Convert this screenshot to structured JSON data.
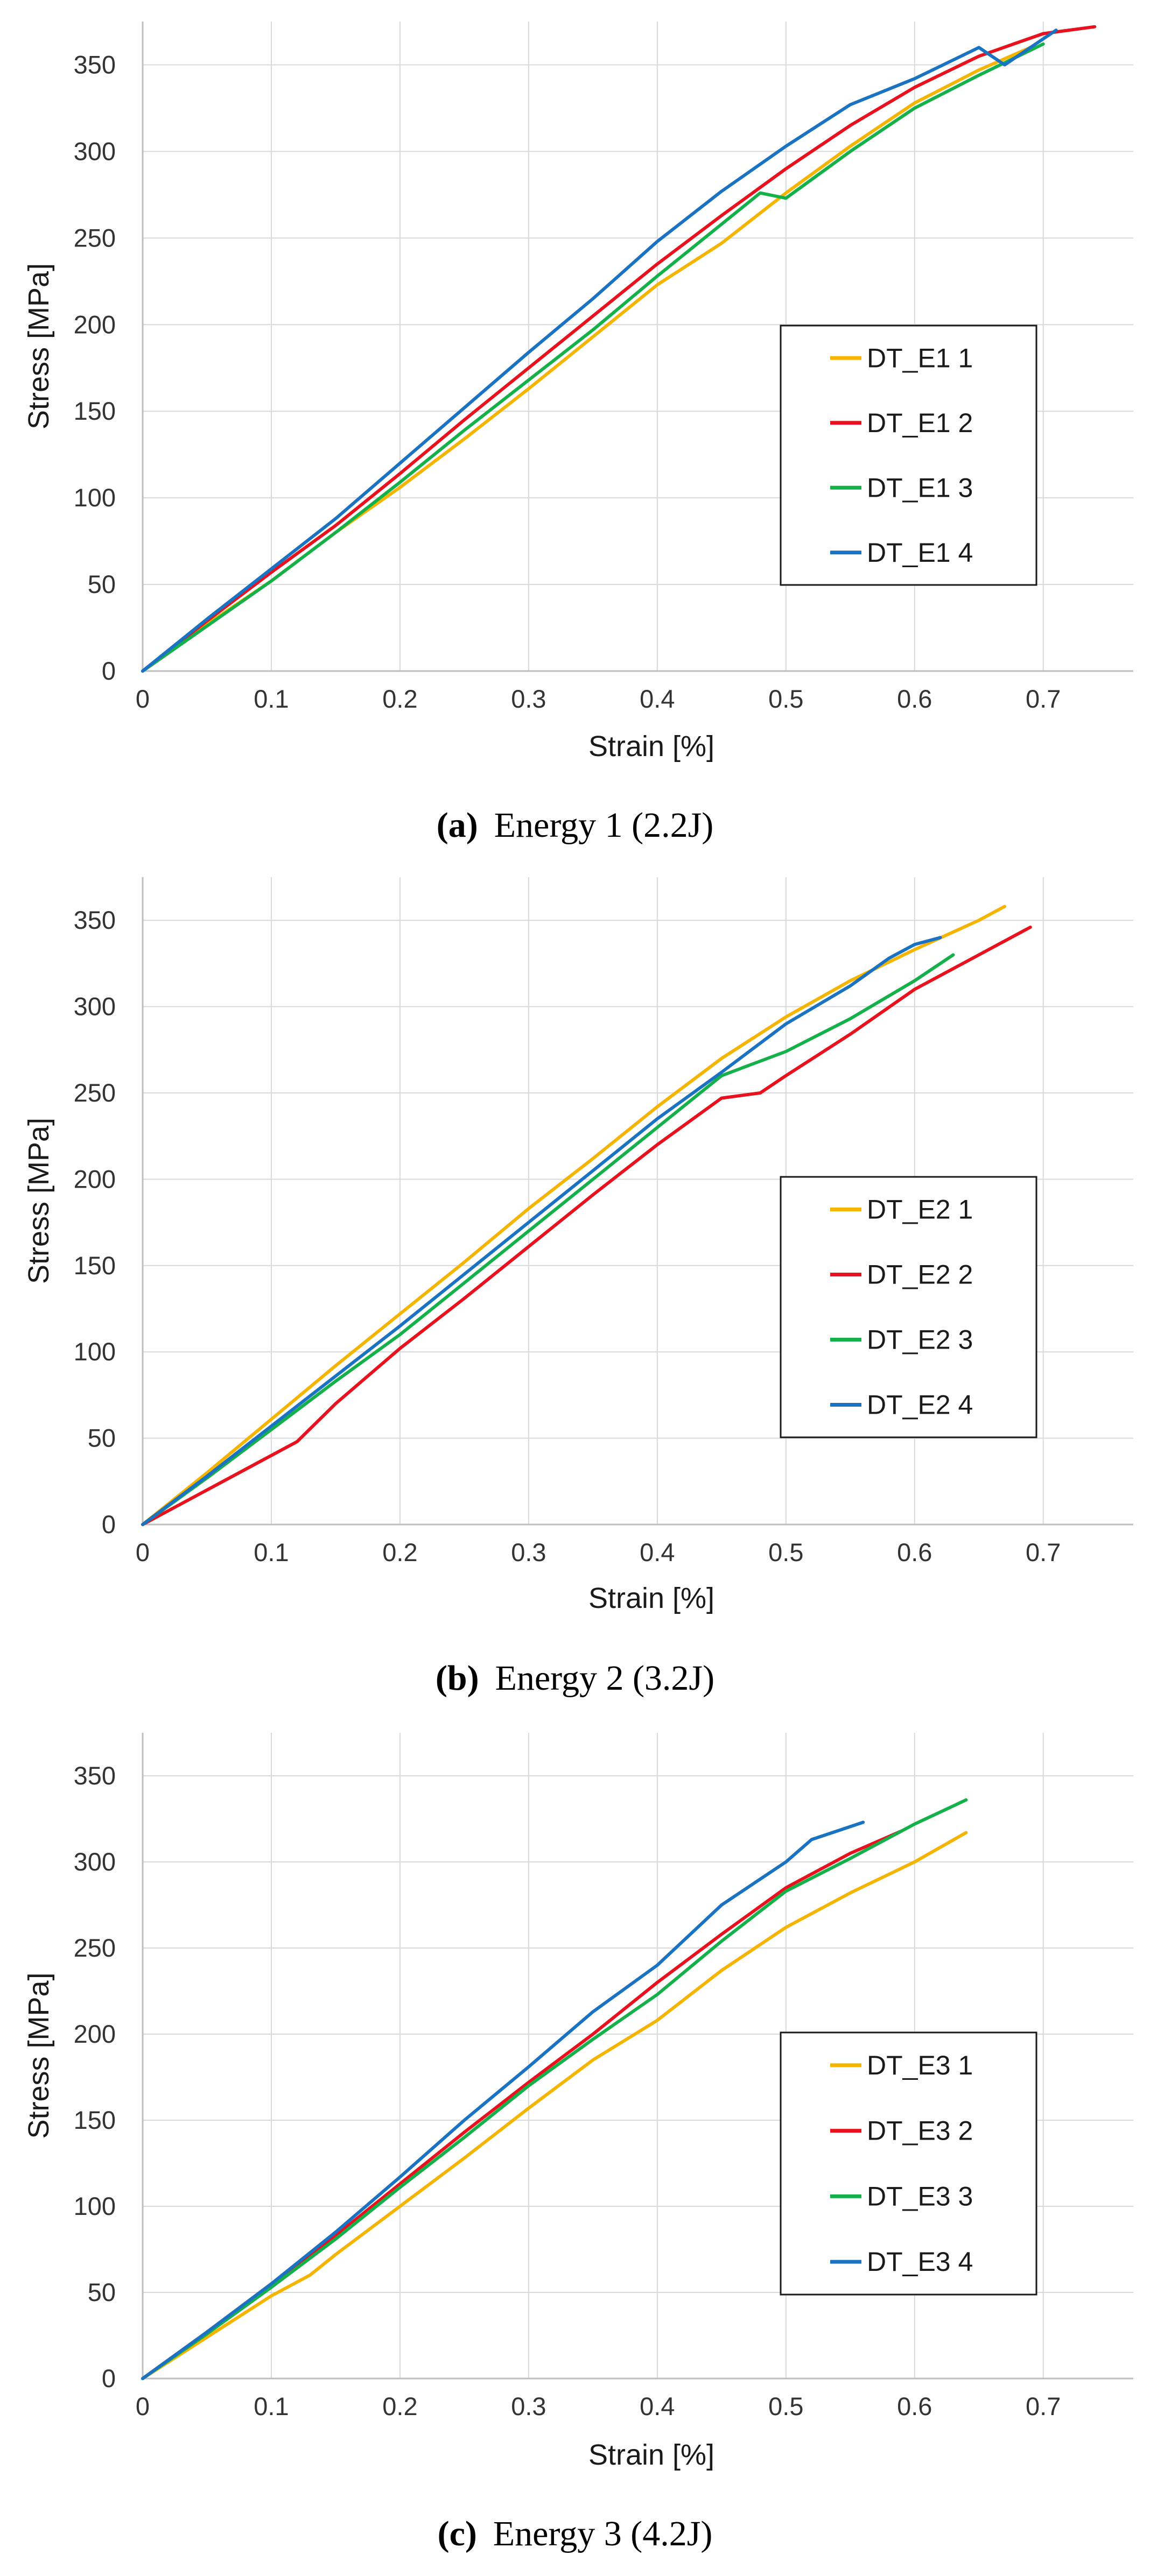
{
  "colors": {
    "yellow": "#f4b400",
    "red": "#e8111d",
    "green": "#14b04a",
    "blue": "#1a72c2",
    "grid": "#d9d9d9"
  },
  "chart_data": [
    {
      "type": "line",
      "caption_tag": "(a)",
      "caption_text": "Energy 1 (2.2J)",
      "xlabel": "Strain [%]",
      "ylabel": "Stress [MPa]",
      "xlim": [
        0,
        0.77
      ],
      "ylim": [
        0,
        375
      ],
      "xticks": [
        "0",
        "0.1",
        "0.2",
        "0.3",
        "0.4",
        "0.5",
        "0.6",
        "0.7"
      ],
      "yticks": [
        "0",
        "50",
        "100",
        "150",
        "200",
        "250",
        "300",
        "350"
      ],
      "grid": true,
      "legend_position": "center-right",
      "series": [
        {
          "name": "DT_E1 1",
          "color_key": "yellow",
          "x": [
            0,
            0.05,
            0.1,
            0.15,
            0.2,
            0.25,
            0.3,
            0.35,
            0.4,
            0.45,
            0.5,
            0.55,
            0.6,
            0.65,
            0.69
          ],
          "y": [
            0,
            27,
            52,
            80,
            106,
            134,
            163,
            193,
            223,
            247,
            276,
            303,
            328,
            347,
            360
          ]
        },
        {
          "name": "DT_E1 2",
          "color_key": "red",
          "x": [
            0,
            0.05,
            0.1,
            0.15,
            0.2,
            0.25,
            0.3,
            0.35,
            0.4,
            0.45,
            0.5,
            0.55,
            0.6,
            0.65,
            0.7,
            0.74
          ],
          "y": [
            0,
            29,
            57,
            84,
            114,
            145,
            175,
            205,
            235,
            263,
            290,
            315,
            337,
            355,
            368,
            372
          ]
        },
        {
          "name": "DT_E1 3",
          "color_key": "green",
          "x": [
            0,
            0.05,
            0.1,
            0.15,
            0.2,
            0.25,
            0.3,
            0.35,
            0.4,
            0.45,
            0.48,
            0.5,
            0.55,
            0.6,
            0.65,
            0.7
          ],
          "y": [
            0,
            26,
            52,
            80,
            109,
            139,
            168,
            197,
            228,
            258,
            276,
            273,
            300,
            325,
            344,
            362
          ]
        },
        {
          "name": "DT_E1 4",
          "color_key": "blue",
          "x": [
            0,
            0.05,
            0.1,
            0.15,
            0.2,
            0.25,
            0.3,
            0.35,
            0.4,
            0.45,
            0.5,
            0.55,
            0.6,
            0.65,
            0.67,
            0.71
          ],
          "y": [
            0,
            30,
            59,
            88,
            120,
            152,
            184,
            215,
            248,
            277,
            303,
            327,
            342,
            360,
            350,
            370
          ]
        }
      ]
    },
    {
      "type": "line",
      "caption_tag": "(b)",
      "caption_text": "Energy 2 (3.2J)",
      "xlabel": "Strain [%]",
      "ylabel": "Stress [MPa]",
      "xlim": [
        0,
        0.77
      ],
      "ylim": [
        0,
        375
      ],
      "xticks": [
        "0",
        "0.1",
        "0.2",
        "0.3",
        "0.4",
        "0.5",
        "0.6",
        "0.7"
      ],
      "yticks": [
        "0",
        "50",
        "100",
        "150",
        "200",
        "250",
        "300",
        "350"
      ],
      "grid": true,
      "legend_position": "center-right",
      "series": [
        {
          "name": "DT_E2 1",
          "color_key": "yellow",
          "x": [
            0,
            0.05,
            0.1,
            0.15,
            0.2,
            0.25,
            0.3,
            0.35,
            0.4,
            0.45,
            0.5,
            0.55,
            0.6,
            0.65,
            0.67
          ],
          "y": [
            0,
            30,
            61,
            92,
            122,
            152,
            183,
            212,
            242,
            270,
            294,
            315,
            333,
            350,
            358
          ]
        },
        {
          "name": "DT_E2 2",
          "color_key": "red",
          "x": [
            0,
            0.05,
            0.1,
            0.12,
            0.15,
            0.2,
            0.25,
            0.3,
            0.35,
            0.4,
            0.45,
            0.48,
            0.5,
            0.55,
            0.6,
            0.65,
            0.69
          ],
          "y": [
            0,
            20,
            40,
            48,
            70,
            102,
            131,
            161,
            191,
            220,
            247,
            250,
            260,
            284,
            310,
            330,
            346
          ]
        },
        {
          "name": "DT_E2 3",
          "color_key": "green",
          "x": [
            0,
            0.05,
            0.1,
            0.15,
            0.2,
            0.25,
            0.3,
            0.35,
            0.4,
            0.45,
            0.5,
            0.55,
            0.6,
            0.63
          ],
          "y": [
            0,
            27,
            55,
            83,
            110,
            140,
            170,
            200,
            230,
            260,
            274,
            293,
            315,
            330
          ]
        },
        {
          "name": "DT_E2 4",
          "color_key": "blue",
          "x": [
            0,
            0.05,
            0.1,
            0.15,
            0.2,
            0.25,
            0.3,
            0.35,
            0.4,
            0.45,
            0.5,
            0.55,
            0.58,
            0.6,
            0.62
          ],
          "y": [
            0,
            28,
            57,
            86,
            115,
            145,
            175,
            205,
            235,
            262,
            290,
            312,
            328,
            336,
            340
          ]
        }
      ]
    },
    {
      "type": "line",
      "caption_tag": "(c)",
      "caption_text": "Energy 3 (4.2J)",
      "xlabel": "Strain [%]",
      "ylabel": "Stress [MPa]",
      "xlim": [
        0,
        0.77
      ],
      "ylim": [
        0,
        375
      ],
      "xticks": [
        "0",
        "0.1",
        "0.2",
        "0.3",
        "0.4",
        "0.5",
        "0.6",
        "0.7"
      ],
      "yticks": [
        "0",
        "50",
        "100",
        "150",
        "200",
        "250",
        "300",
        "350"
      ],
      "grid": true,
      "legend_position": "center-right",
      "series": [
        {
          "name": "DT_E3 1",
          "color_key": "yellow",
          "x": [
            0,
            0.05,
            0.1,
            0.13,
            0.15,
            0.2,
            0.25,
            0.3,
            0.35,
            0.4,
            0.45,
            0.5,
            0.55,
            0.6,
            0.64
          ],
          "y": [
            0,
            24,
            48,
            60,
            72,
            100,
            128,
            157,
            185,
            208,
            237,
            262,
            282,
            300,
            317
          ]
        },
        {
          "name": "DT_E3 2",
          "color_key": "red",
          "x": [
            0,
            0.05,
            0.1,
            0.15,
            0.2,
            0.25,
            0.3,
            0.35,
            0.4,
            0.45,
            0.5,
            0.55,
            0.59
          ],
          "y": [
            0,
            27,
            55,
            83,
            113,
            143,
            172,
            200,
            230,
            258,
            285,
            305,
            318
          ]
        },
        {
          "name": "DT_E3 3",
          "color_key": "green",
          "x": [
            0,
            0.05,
            0.1,
            0.15,
            0.2,
            0.25,
            0.3,
            0.35,
            0.4,
            0.45,
            0.5,
            0.55,
            0.6,
            0.64
          ],
          "y": [
            0,
            26,
            53,
            81,
            111,
            140,
            170,
            197,
            223,
            254,
            283,
            302,
            322,
            336
          ]
        },
        {
          "name": "DT_E3 4",
          "color_key": "blue",
          "x": [
            0,
            0.05,
            0.1,
            0.15,
            0.2,
            0.25,
            0.3,
            0.35,
            0.4,
            0.45,
            0.5,
            0.52,
            0.56
          ],
          "y": [
            0,
            27,
            55,
            85,
            117,
            150,
            181,
            213,
            240,
            275,
            300,
            313,
            323
          ]
        }
      ]
    }
  ]
}
